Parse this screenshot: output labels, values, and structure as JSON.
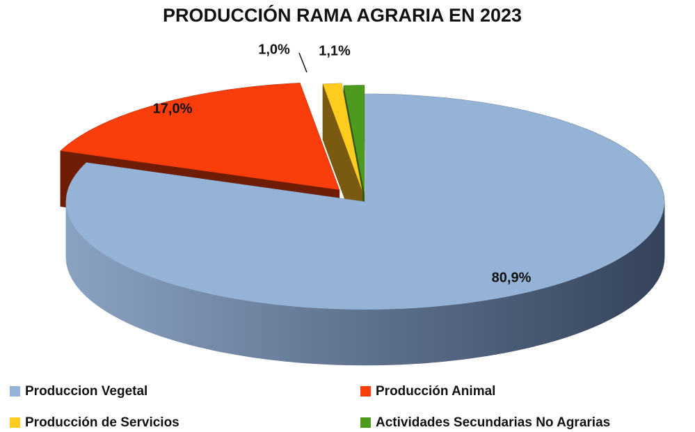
{
  "chart_data": {
    "type": "pie",
    "title": "PRODUCCIÓN RAMA AGRARIA EN 2023",
    "categories": [
      "Produccion Vegetal",
      "Producción Animal",
      "Producción de Servicios",
      "Actividades Secundarias No Agrarias"
    ],
    "values": [
      80.9,
      17.0,
      1.0,
      1.1
    ],
    "value_labels": [
      "80,9%",
      "17,0%",
      "1,0%",
      "1,1%"
    ],
    "colors": [
      "#95b3d7",
      "#f93e0c",
      "#ffcc1f",
      "#4e9a1e"
    ],
    "legend": "bottom"
  }
}
